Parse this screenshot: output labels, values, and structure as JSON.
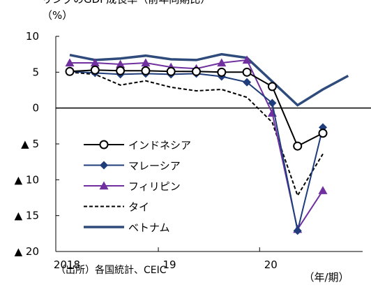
{
  "header": {
    "title": "リングのGDP成長率（前年同期比）"
  },
  "source": "（出所）各国統計、CEIC",
  "chart_data": {
    "type": "line",
    "title": "リングのGDP成長率（前年同期比）",
    "unit_label": "（%）",
    "x_unit_label": "（年/期）",
    "x_tick_labels": [
      "2018",
      "19",
      "20"
    ],
    "y_tick_labels": [
      "10",
      "5",
      "0",
      "▲ 5",
      "▲ 10",
      "▲ 15",
      "▲ 20"
    ],
    "y_ticks": [
      10,
      5,
      0,
      -5,
      -10,
      -15,
      -20
    ],
    "ylim": [
      -20,
      10
    ],
    "x": [
      "2018Q1",
      "2018Q2",
      "2018Q3",
      "2018Q4",
      "2019Q1",
      "2019Q2",
      "2019Q3",
      "2019Q4",
      "2020Q1",
      "2020Q2",
      "2020Q3",
      "2020Q4"
    ],
    "legend_position": "lower-left",
    "series": [
      {
        "name": "インドネシア",
        "color": "#000000",
        "dash": false,
        "marker": "circle-open",
        "values": [
          5.1,
          5.3,
          5.2,
          5.2,
          5.1,
          5.1,
          5.0,
          5.0,
          3.0,
          -5.3,
          -3.5,
          null
        ]
      },
      {
        "name": "マレーシア",
        "color": "#1f3d7a",
        "dash": false,
        "marker": "diamond",
        "values": [
          5.1,
          4.9,
          4.7,
          4.8,
          4.7,
          4.8,
          4.4,
          3.6,
          0.7,
          -17.1,
          -2.7,
          null
        ]
      },
      {
        "name": "フィリピン",
        "color": "#7030a0",
        "dash": false,
        "marker": "triangle",
        "values": [
          6.3,
          6.3,
          6.1,
          6.3,
          5.7,
          5.5,
          6.3,
          6.7,
          -0.7,
          -16.9,
          -11.5,
          null
        ]
      },
      {
        "name": "タイ",
        "color": "#000000",
        "dash": true,
        "marker": "none",
        "values": [
          5.0,
          4.7,
          3.2,
          3.8,
          2.9,
          2.4,
          2.6,
          1.5,
          -2.0,
          -12.2,
          -6.4,
          null
        ]
      },
      {
        "name": "ベトナム",
        "color": "#2f4b7c",
        "dash": false,
        "marker": "none",
        "thick": true,
        "values": [
          7.4,
          6.7,
          6.9,
          7.3,
          6.8,
          6.7,
          7.5,
          7.0,
          3.7,
          0.4,
          2.6,
          4.5
        ]
      }
    ]
  }
}
